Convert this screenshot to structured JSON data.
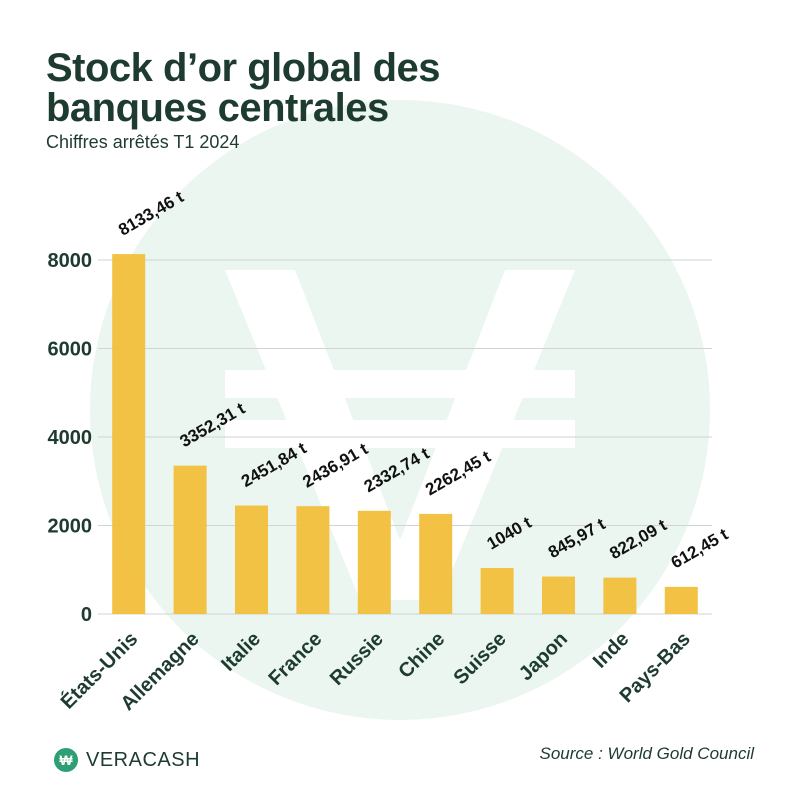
{
  "header": {
    "title": "Stock d’or global des banques centrales",
    "subtitle": "Chiffres arrêtés T1 2024"
  },
  "footer": {
    "brand": "VERACASH",
    "brand_logo_icon": "veracash-logo-icon",
    "source": "Source : World Gold Council"
  },
  "colors": {
    "bar": "#f2bf3a",
    "text": "#1e3b30",
    "grid": "#d0d4d2",
    "watermark": "#eaf6ef"
  },
  "chart_data": {
    "type": "bar",
    "categories": [
      "États-Unis",
      "Allemagne",
      "Italie",
      "France",
      "Russie",
      "Chine",
      "Suisse",
      "Japon",
      "Inde",
      "Pays-Bas"
    ],
    "values": [
      8133.46,
      3352.31,
      2451.84,
      2436.91,
      2332.74,
      2262.45,
      1040,
      845.97,
      822.09,
      612.45
    ],
    "data_labels": [
      "8133,46 t",
      "3352,31 t",
      "2451,84 t",
      "2436,91 t",
      "2332,74 t",
      "2262,45 t",
      "1040 t",
      "845,97 t",
      "822,09 t",
      "612,45 t"
    ],
    "yticks": [
      0,
      2000,
      4000,
      6000,
      8000
    ],
    "ylim": [
      0,
      8000
    ],
    "grid": true,
    "legend": false,
    "xlabel": "",
    "ylabel": ""
  }
}
